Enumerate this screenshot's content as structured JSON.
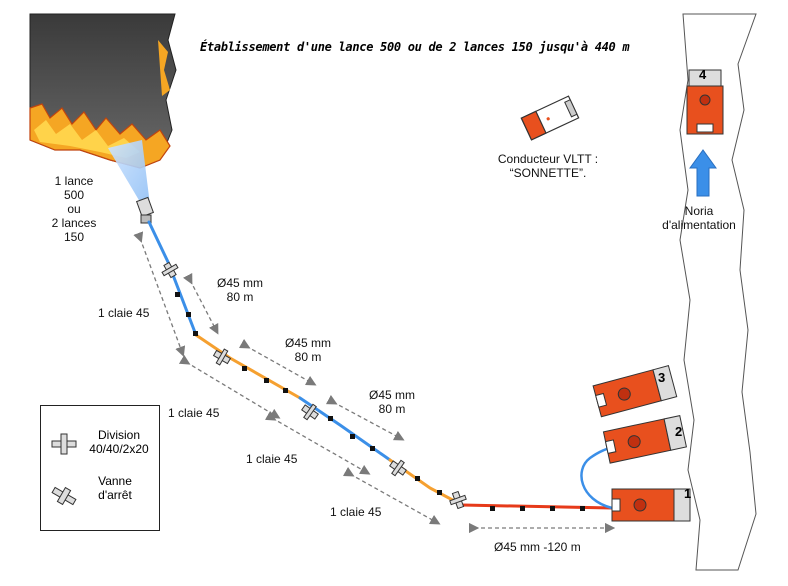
{
  "title": "Établissement d'une lance 500 ou de 2 lances 150 jusqu'à 440 m",
  "fire_label": [
    "1 lance",
    "500",
    "ou",
    "2 lances",
    "150"
  ],
  "hose_sections": [
    {
      "diameter": "Ø45 mm",
      "length": "80 m"
    },
    {
      "diameter": "Ø45 mm",
      "length": "80 m"
    },
    {
      "diameter": "Ø45 mm",
      "length": "80 m"
    }
  ],
  "claies": [
    "1 claie 45",
    "1 claie 45",
    "1 claie 45",
    "1 claie 45"
  ],
  "bottom_hose": "Ø45 mm -120 m",
  "driver": {
    "line1": "Conducteur VLTT :",
    "line2": "“SONNETTE”."
  },
  "noria": {
    "line1": "Noria",
    "line2": "d'alimentation"
  },
  "trucks": [
    "1",
    "2",
    "3",
    "4"
  ],
  "legend": {
    "division": [
      "Division",
      "40/40/2x20"
    ],
    "vanne": [
      "Vanne",
      "d'arrêt"
    ]
  },
  "colors": {
    "blue_hose": "#3b8fe8",
    "orange_hose": "#f5a030",
    "red_hose": "#e63a1a",
    "truck": "#e8501e",
    "smoke": "#4a4a4a"
  }
}
